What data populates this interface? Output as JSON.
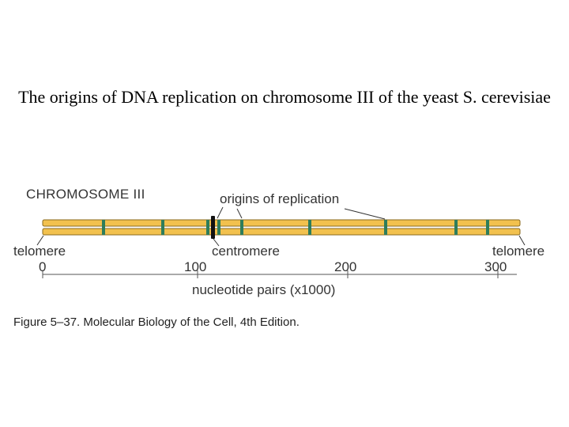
{
  "title": "The origins of DNA replication on chromosome III of the yeast S. cerevisiae",
  "figure": {
    "chromosome_label": "CHROMOSOME III",
    "origins_label": "origins of replication",
    "telomere_left": "telomere",
    "telomere_right": "telomere",
    "centromere_label": "centromere",
    "axis_ticks": [
      "0",
      "100",
      "200",
      "300"
    ],
    "axis_label": "nucleotide pairs (x1000)",
    "caption": "Figure 5–37. Molecular Biology of the Cell, 4th Edition.",
    "colors": {
      "chromatid": "#f2c14e",
      "chromatid_outline": "#8a6a1e",
      "origin": "#2e7d5b",
      "centromere": "#111111",
      "axis": "#555555"
    }
  }
}
